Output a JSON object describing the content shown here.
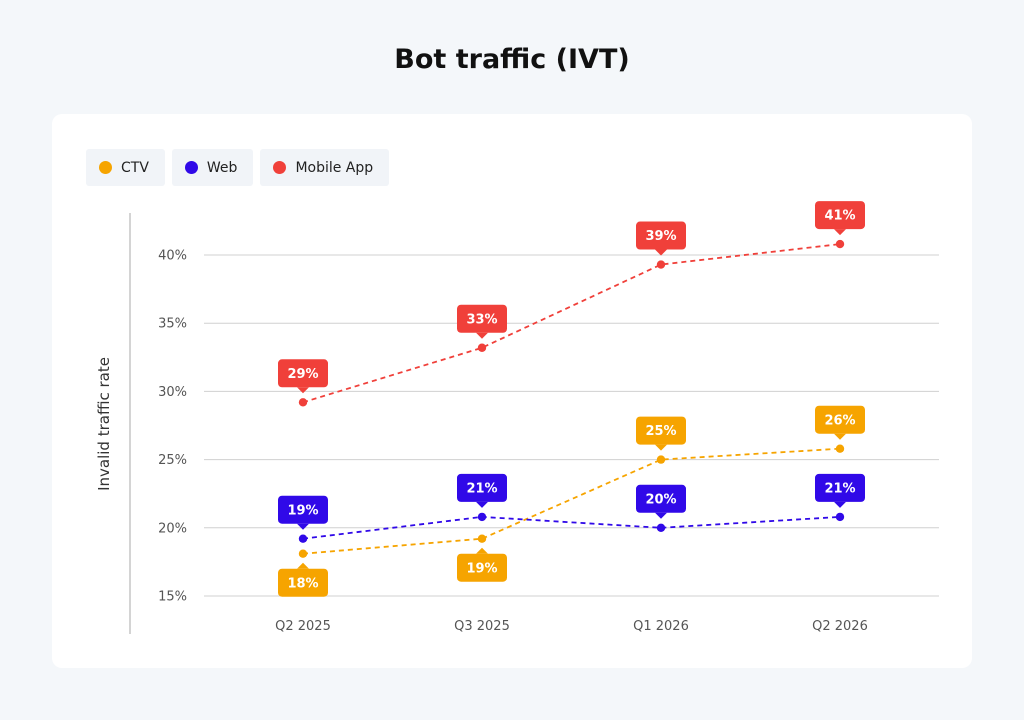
{
  "chart_data": {
    "type": "line",
    "title": "Bot traffic (IVT)",
    "ylabel": "Invalid traffic rate",
    "xlabel": "",
    "categories": [
      "Q2 2025",
      "Q3 2025",
      "Q1 2026",
      "Q2 2026"
    ],
    "yticks": [
      "15%",
      "20%",
      "25%",
      "30%",
      "35%",
      "40%"
    ],
    "ylim": [
      15,
      43
    ],
    "grid": true,
    "legend_position": "top-left",
    "series": [
      {
        "name": "CTV",
        "color": "#f6a400",
        "values": [
          18.1,
          19.2,
          25.0,
          25.8
        ],
        "labels": [
          "18%",
          "19%",
          "25%",
          "26%"
        ],
        "label_side": [
          "below",
          "below",
          "above",
          "above"
        ]
      },
      {
        "name": "Web",
        "color": "#3009e8",
        "values": [
          19.2,
          20.8,
          20.0,
          20.8
        ],
        "labels": [
          "19%",
          "21%",
          "20%",
          "21%"
        ],
        "label_side": [
          "above",
          "above",
          "above",
          "above"
        ]
      },
      {
        "name": "Mobile App",
        "color": "#f0403a",
        "values": [
          29.2,
          33.2,
          39.3,
          40.8
        ],
        "labels": [
          "29%",
          "33%",
          "39%",
          "41%"
        ],
        "label_side": [
          "above",
          "above",
          "above",
          "above"
        ]
      }
    ]
  }
}
